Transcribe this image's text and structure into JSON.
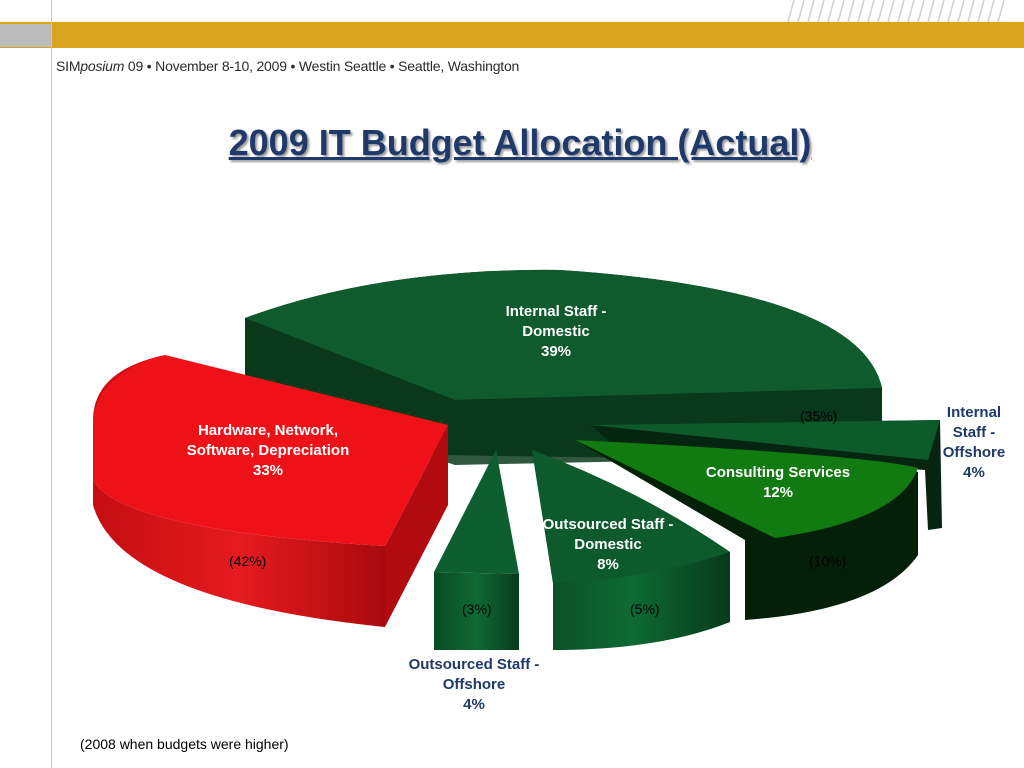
{
  "header": {
    "sim_prefix": "SIM",
    "sim_italic": "posium",
    "rest": " 09  •  November 8-10, 2009  •  Westin Seattle  •  Seattle, Washington"
  },
  "title": "2009 IT Budget Allocation (Actual)",
  "footnote": "(2008 when budgets were higher)",
  "colors": {
    "accent_bar": "#d9a521",
    "title": "#1f3a6a",
    "green": "#0e5a2e",
    "red": "#e8141b",
    "bright_green": "#117a11"
  },
  "chart_data": {
    "type": "pie",
    "title": "2009 IT Budget Allocation (Actual)",
    "style": "3d-exploded",
    "slices": [
      {
        "label": "Internal Staff - Domestic",
        "value": 39,
        "value_label": "39%",
        "previous": "(35%)"
      },
      {
        "label": "Internal Staff - Offshore",
        "value": 4,
        "value_label": "4%",
        "previous": ""
      },
      {
        "label": "Consulting Services",
        "value": 12,
        "value_label": "12%",
        "previous": "(10%)"
      },
      {
        "label": "Outsourced Staff - Domestic",
        "value": 8,
        "value_label": "8%",
        "previous": "(5%)"
      },
      {
        "label": "Outsourced Staff - Offshore",
        "value": 4,
        "value_label": "4%",
        "previous": "(3%)"
      },
      {
        "label": "Hardware, Network, Software, Depreciation",
        "value": 33,
        "value_label": "33%",
        "previous": "(42%)"
      }
    ],
    "note": "(2008 when budgets were higher)"
  }
}
